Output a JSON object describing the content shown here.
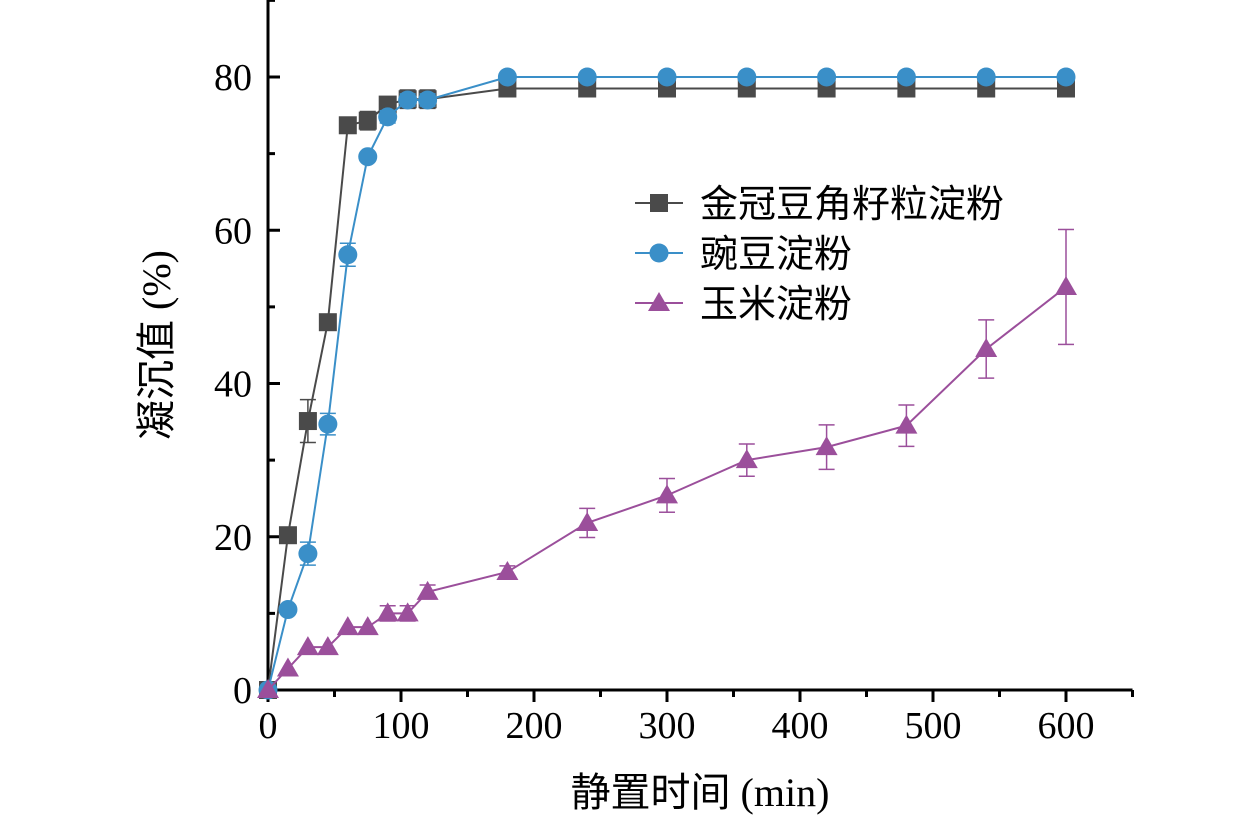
{
  "chart_data": {
    "type": "line",
    "title": "",
    "xlabel": "静置时间 (min)",
    "ylabel": "凝沉值 (%)",
    "xlim": [
      0,
      650
    ],
    "ylim": [
      0,
      90
    ],
    "xticks": [
      0,
      100,
      200,
      300,
      400,
      500,
      600
    ],
    "xtick_labels": [
      "0",
      "100",
      "200",
      "300",
      "400",
      "500",
      "600"
    ],
    "yticks": [
      0,
      20,
      40,
      60,
      80
    ],
    "ytick_labels": [
      "0",
      "20",
      "40",
      "60",
      "80"
    ],
    "grid": false,
    "legend_position": "right-middle",
    "x": [
      0,
      15,
      30,
      45,
      60,
      75,
      90,
      105,
      120,
      180,
      240,
      300,
      360,
      420,
      480,
      540,
      600
    ],
    "series": [
      {
        "name": "金冠豆角籽粒淀粉",
        "color": "#4a4a4a",
        "marker": "square",
        "values": [
          0,
          20.2,
          35.1,
          48.0,
          73.7,
          74.3,
          76.4,
          77.1,
          77.1,
          78.5,
          78.5,
          78.5,
          78.5,
          78.5,
          78.5,
          78.5,
          78.5
        ],
        "errors": [
          0,
          0.3,
          2.8,
          0.3,
          0.3,
          1.2,
          0.5,
          1.2,
          1.2,
          0.3,
          0.3,
          0.3,
          0.3,
          0.3,
          0.3,
          0.3,
          0.3
        ]
      },
      {
        "name": "豌豆淀粉",
        "color": "#3a8fc8",
        "marker": "circle",
        "values": [
          0,
          10.5,
          17.8,
          34.7,
          56.8,
          69.6,
          74.8,
          77.0,
          77.0,
          80.0,
          80.0,
          80.0,
          80.0,
          80.0,
          80.0,
          80.0,
          80.0
        ],
        "errors": [
          0,
          0.3,
          1.5,
          1.4,
          1.5,
          0.3,
          0.8,
          0.8,
          0.8,
          0.2,
          0.2,
          0.2,
          0.2,
          0.2,
          0.2,
          0.2,
          0.2
        ]
      },
      {
        "name": "玉米淀粉",
        "color": "#9b4f9b",
        "marker": "triangle",
        "values": [
          0,
          2.8,
          5.6,
          5.6,
          8.2,
          8.2,
          10.0,
          10.0,
          12.8,
          15.4,
          21.8,
          25.4,
          30.0,
          31.7,
          34.5,
          44.5,
          52.6
        ],
        "errors": [
          0,
          0.3,
          0.3,
          0.3,
          0.3,
          0.3,
          1.0,
          1.0,
          0.9,
          0.8,
          1.9,
          2.2,
          2.1,
          2.9,
          2.7,
          3.8,
          7.5
        ]
      }
    ]
  }
}
